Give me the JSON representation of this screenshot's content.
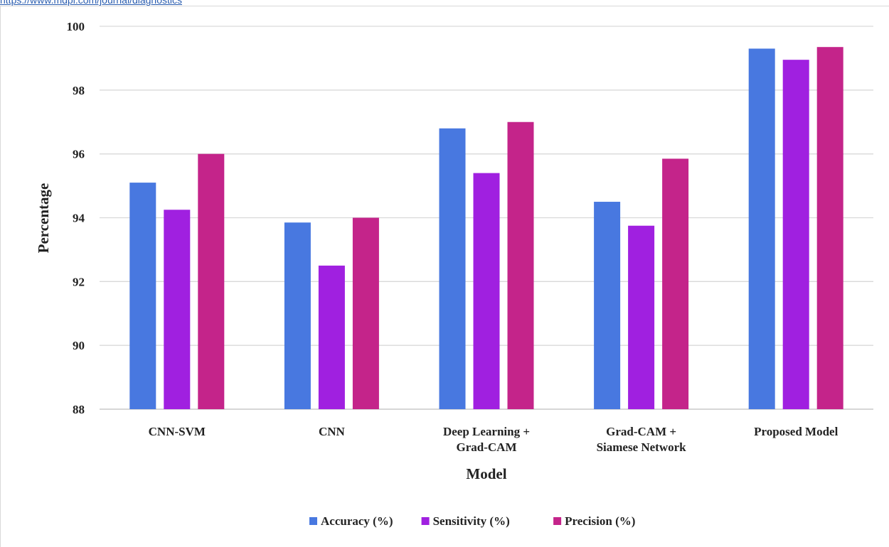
{
  "header": {
    "link_text": "https://www.mdpi.com/journal/diagnostics"
  },
  "chart_data": {
    "type": "bar",
    "categories": [
      [
        "CNN-SVM"
      ],
      [
        "CNN"
      ],
      [
        "Deep Learning +",
        "Grad-CAM"
      ],
      [
        "Grad-CAM +",
        "Siamese Network"
      ],
      [
        "Proposed Model"
      ]
    ],
    "series": [
      {
        "name": "Accuracy (%)",
        "color": "#4878e0",
        "values": [
          95.1,
          93.85,
          96.8,
          94.5,
          99.3
        ]
      },
      {
        "name": "Sensitivity (%)",
        "color": "#a020e0",
        "values": [
          94.25,
          92.5,
          95.4,
          93.75,
          98.95
        ]
      },
      {
        "name": "Precision (%)",
        "color": "#c4248a",
        "values": [
          96.0,
          94.0,
          97.0,
          95.85,
          99.35
        ]
      }
    ],
    "yticks": [
      88,
      90,
      92,
      94,
      96,
      98,
      100
    ],
    "ylim": [
      88,
      100
    ],
    "xlabel": "Model",
    "ylabel": "Percentage",
    "grid": true,
    "legend_position": "bottom"
  }
}
